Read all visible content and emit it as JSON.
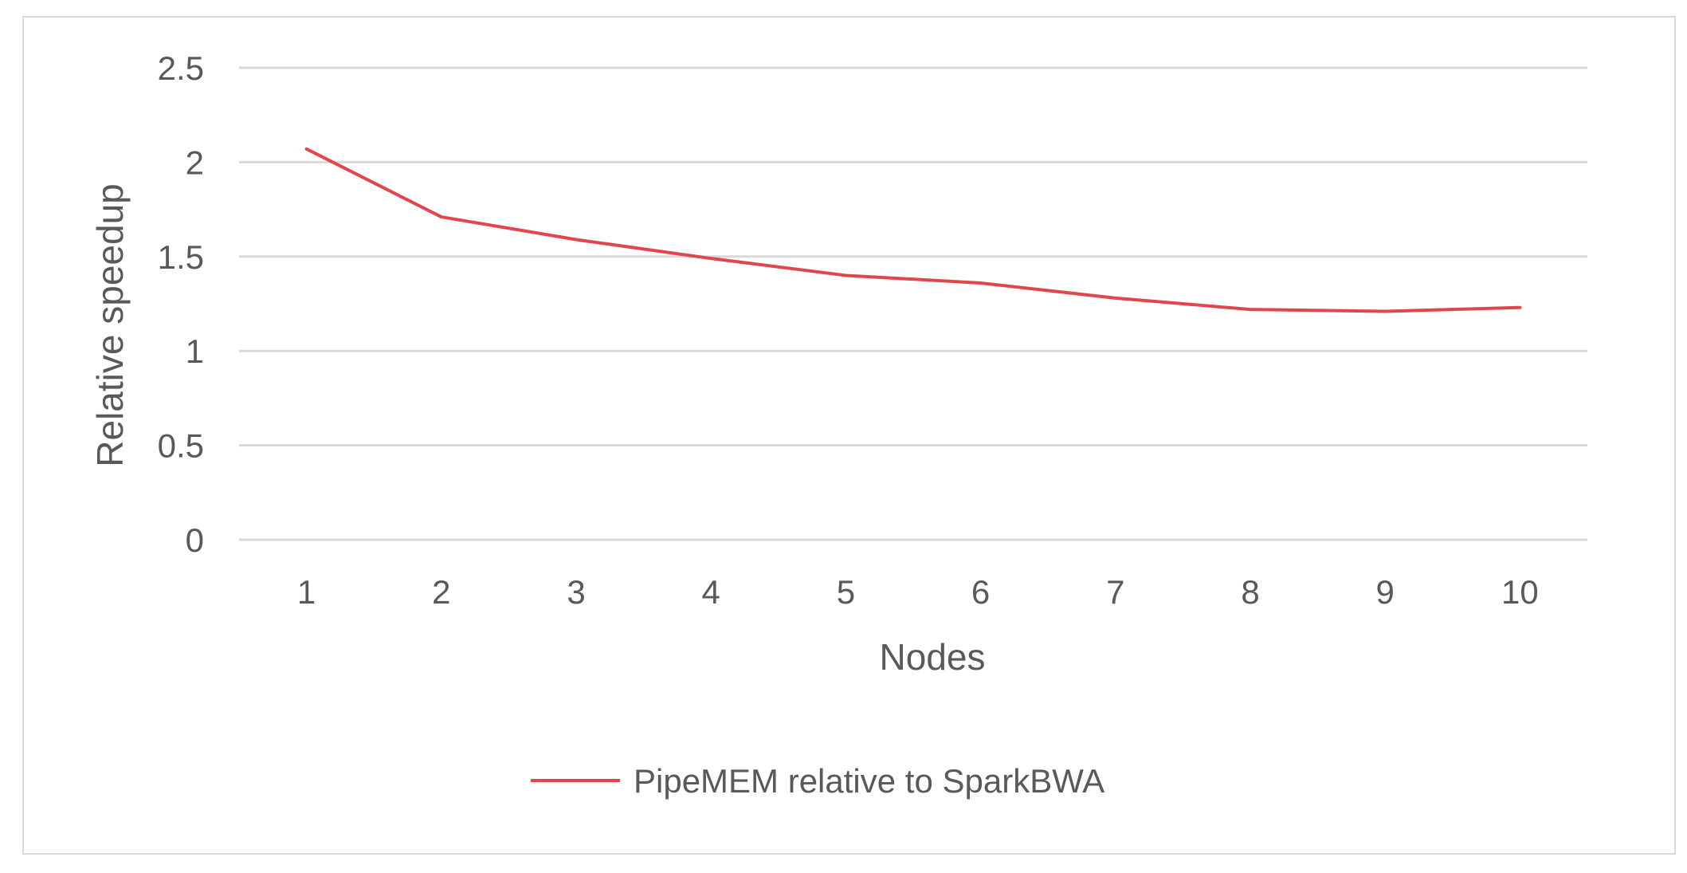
{
  "chart_data": {
    "type": "line",
    "title": "",
    "xlabel": "Nodes",
    "ylabel": "Relative speedup",
    "categories": [
      "1",
      "2",
      "3",
      "4",
      "5",
      "6",
      "7",
      "8",
      "9",
      "10"
    ],
    "ylim": [
      0,
      2.5
    ],
    "yticks": [
      "0",
      "0.5",
      "1",
      "1.5",
      "2",
      "2.5"
    ],
    "grid": "horizontal",
    "legend_position": "bottom",
    "series": [
      {
        "name": "PipeMEM relative to SparkBWA",
        "color": "#e0474c",
        "values": [
          2.07,
          1.71,
          1.59,
          1.49,
          1.4,
          1.36,
          1.28,
          1.22,
          1.21,
          1.23
        ]
      }
    ],
    "colors": {
      "grid": "#d9d9d9",
      "text": "#595959",
      "frame": "#d9d9d9"
    }
  }
}
